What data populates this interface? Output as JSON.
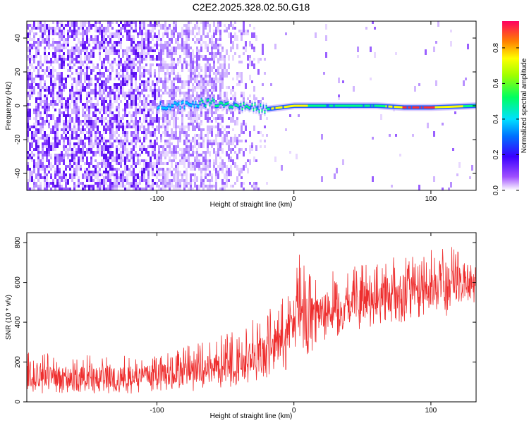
{
  "title": "C2E2.2025.328.02.50.G18",
  "colors": {
    "spectral_bg": "#ffffff",
    "spectral_low": "#7b2cff",
    "snr_line": "#ee2e2e",
    "ridge": [
      "#2060ff",
      "#00ccff",
      "#00ff80",
      "#ffff00",
      "#ff3030"
    ]
  },
  "chart_data": [
    {
      "type": "heatmap",
      "title": "",
      "xlabel": "Height of straight line (km)",
      "ylabel": "Frequency (Hz)",
      "xlim": [
        -195,
        133
      ],
      "ylim": [
        -50,
        50
      ],
      "xticks": [
        -100,
        0,
        100
      ],
      "yticks": [
        -40,
        -20,
        0,
        20,
        40
      ],
      "colorbar": {
        "label": "Normalized spectral amplitude",
        "range": [
          0,
          0.95
        ],
        "ticks": [
          0,
          0.2,
          0.4,
          0.6,
          0.8
        ]
      },
      "ridge": {
        "description": "dominant spectral line",
        "x": [
          -100,
          -80,
          -60,
          -40,
          -20,
          0,
          20,
          60,
          80,
          100,
          133
        ],
        "freq": [
          0,
          1,
          2,
          0,
          -2,
          0,
          0,
          0,
          -1,
          -1,
          0
        ],
        "amplitude": [
          0.25,
          0.35,
          0.4,
          0.5,
          0.6,
          0.75,
          0.5,
          0.5,
          0.9,
          0.9,
          0.5
        ]
      }
    },
    {
      "type": "line",
      "title": "",
      "xlabel": "Height of straight line (km)",
      "ylabel": "SNR (10 * v/v)",
      "xlim": [
        -195,
        133
      ],
      "ylim": [
        0,
        850
      ],
      "xticks": [
        -100,
        0,
        100
      ],
      "yticks": [
        0,
        200,
        400,
        600,
        800
      ],
      "series": [
        {
          "x": [
            -195,
            -160,
            -120,
            -100,
            -80,
            -60,
            -40,
            -20,
            -5,
            0,
            5,
            10,
            20,
            40,
            60,
            80,
            100,
            120,
            133
          ],
          "mean": [
            130,
            120,
            125,
            135,
            145,
            165,
            200,
            250,
            320,
            420,
            450,
            400,
            450,
            500,
            530,
            550,
            570,
            590,
            610
          ],
          "lower": [
            40,
            40,
            40,
            40,
            50,
            60,
            80,
            120,
            150,
            250,
            300,
            200,
            300,
            350,
            380,
            400,
            420,
            430,
            470
          ],
          "upper": [
            250,
            240,
            240,
            260,
            280,
            330,
            380,
            450,
            550,
            620,
            780,
            680,
            640,
            700,
            720,
            740,
            780,
            800,
            830
          ]
        }
      ]
    }
  ]
}
